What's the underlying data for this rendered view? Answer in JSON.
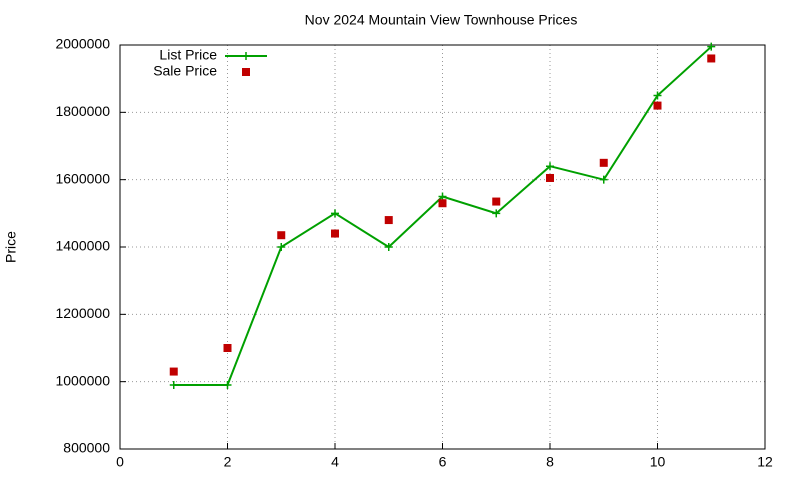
{
  "chart_data": {
    "type": "line",
    "title": "Nov 2024 Mountain View Townhouse Prices",
    "y_label": "Price",
    "x": [
      1,
      2,
      3,
      4,
      5,
      6,
      7,
      8,
      9,
      10,
      11
    ],
    "series": [
      {
        "name": "List Price",
        "color": "#00a000",
        "style": "linespoints",
        "values": [
          990000,
          990000,
          1400000,
          1500000,
          1400000,
          1550000,
          1500000,
          1640000,
          1600000,
          1850000,
          1995000
        ]
      },
      {
        "name": "Sale Price",
        "color": "#c00000",
        "style": "points",
        "values": [
          1030000,
          1100000,
          1435000,
          1440000,
          1480000,
          1530000,
          1535000,
          1605000,
          1650000,
          1820000,
          1960000
        ]
      }
    ],
    "xlim": [
      0,
      12
    ],
    "xticks": [
      0,
      2,
      4,
      6,
      8,
      10,
      12
    ],
    "ylim": [
      800000,
      2000000
    ],
    "yticks": [
      800000,
      1000000,
      1200000,
      1400000,
      1600000,
      1800000,
      2000000
    ],
    "grid": true,
    "legend": "top-left"
  }
}
